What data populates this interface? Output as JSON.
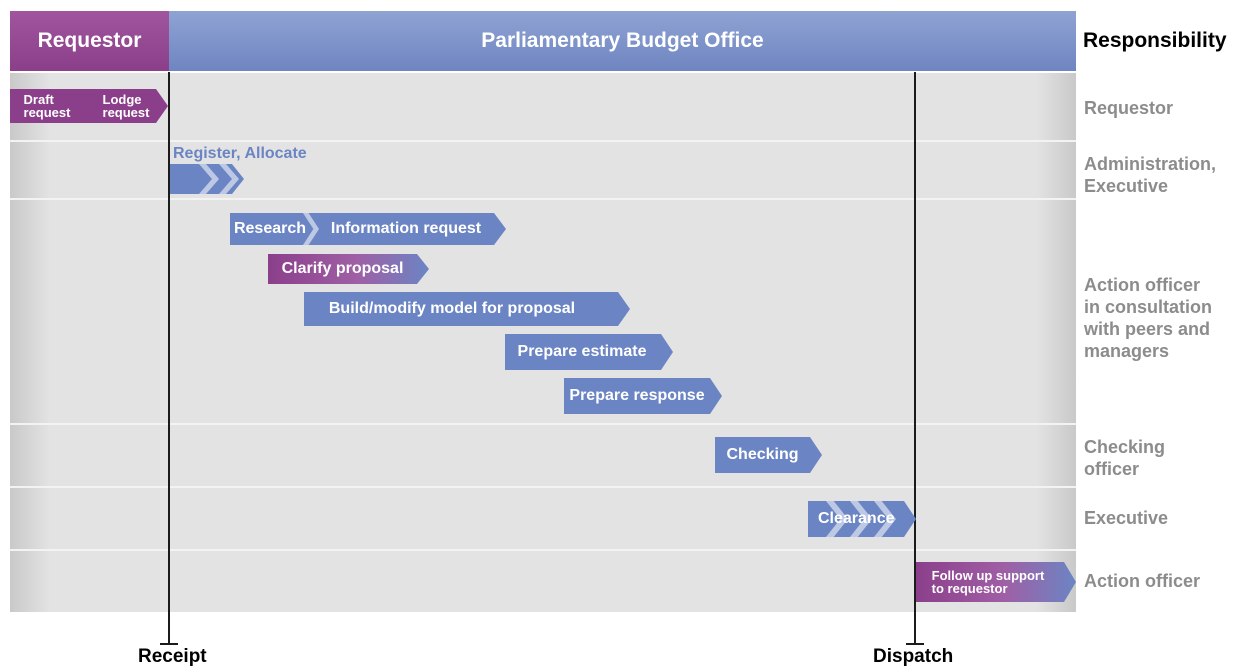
{
  "header": {
    "requestor": "Requestor",
    "office": "Parliamentary Budget Office",
    "responsibility": "Responsibility"
  },
  "roles": [
    {
      "label": "Requestor"
    },
    {
      "label": "Administration,\nExecutive"
    },
    {
      "label": "Action officer\nin consultation\nwith peers and\nmanagers"
    },
    {
      "label": "Checking\nofficer"
    },
    {
      "label": "Executive"
    },
    {
      "label": "Action officer"
    }
  ],
  "markers": {
    "receipt": "Receipt",
    "dispatch": "Dispatch"
  },
  "steps": {
    "draft": "Draft\nrequest",
    "lodge": "Lodge\nrequest",
    "register": "Register, Allocate",
    "research": "Research",
    "info_request": "Information request",
    "clarify": "Clarify proposal",
    "build": "Build/modify model for proposal",
    "estimate": "Prepare estimate",
    "response": "Prepare response",
    "checking": "Checking",
    "clearance": "Clearance",
    "followup": "Follow up support\nto requestor"
  },
  "colors": {
    "requestor_purple": "#8b3f8a",
    "pbo_blue": "#6b85c4",
    "role_label_grey": "#8c8c8c"
  }
}
